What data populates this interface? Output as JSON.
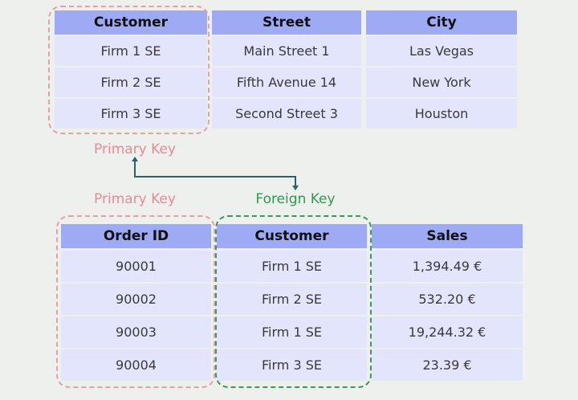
{
  "customers_table": {
    "headers": [
      "Customer",
      "Street",
      "City"
    ],
    "rows": [
      [
        "Firm 1 SE",
        "Main Street 1",
        "Las Vegas"
      ],
      [
        "Firm 2 SE",
        "Fifth Avenue 14",
        "New York"
      ],
      [
        "Firm 3 SE",
        "Second Street 3",
        "Houston"
      ]
    ]
  },
  "orders_table": {
    "headers": [
      "Order ID",
      "Customer",
      "Sales"
    ],
    "rows": [
      [
        "90001",
        "Firm 1 SE",
        "1,394.49 €"
      ],
      [
        "90002",
        "Firm 2 SE",
        "532.20 €"
      ],
      [
        "90003",
        "Firm 1 SE",
        "19,244.32 €"
      ],
      [
        "90004",
        "Firm 3 SE",
        "23.39 €"
      ]
    ]
  },
  "labels": {
    "primary_key_top": "Primary Key",
    "primary_key_bottom": "Primary Key",
    "foreign_key": "Foreign Key"
  },
  "colors": {
    "header": "#9eaaf3",
    "row": "#e2e5fb",
    "primary_key": "#e88a92",
    "foreign_key": "#2e9a4e",
    "arrow": "#2f5f6a"
  }
}
